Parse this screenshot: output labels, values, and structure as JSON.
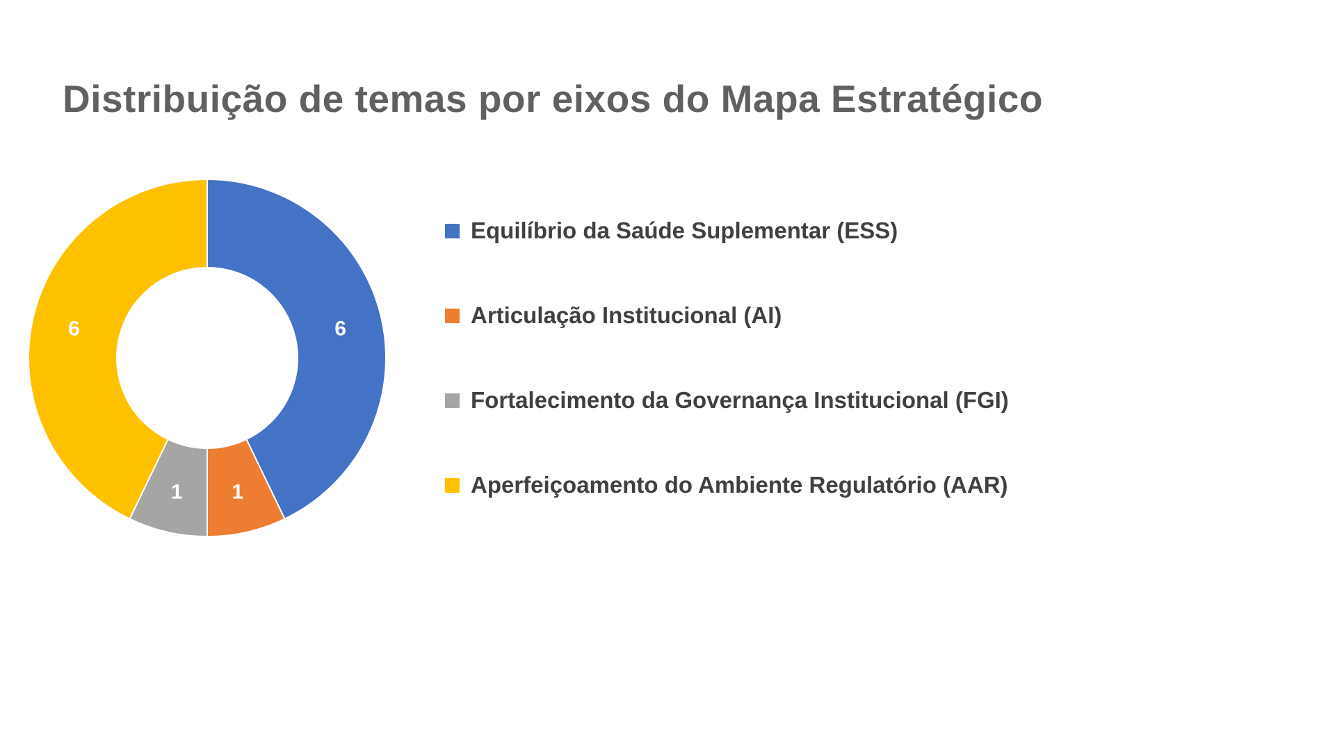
{
  "page": {
    "background": "#ffffff"
  },
  "chart_data": {
    "type": "pie",
    "subtype": "donut",
    "title": "Distribuição de temas por eixos do Mapa Estratégico",
    "title_color": "#606060",
    "legend_position": "right",
    "start_angle_deg": 0,
    "direction": "clockwise",
    "total": 14,
    "label_color": "#ffffff",
    "series": [
      {
        "name": "Equilíbrio da Saúde Suplementar (ESS)",
        "value": 6,
        "label": "6",
        "color": "#4472C4"
      },
      {
        "name": "Articulação Institucional (AI)",
        "value": 1,
        "label": "1",
        "color": "#ED7D31"
      },
      {
        "name": "Fortalecimento da Governança Institucional (FGI)",
        "value": 1,
        "label": "1",
        "color": "#A5A5A5"
      },
      {
        "name": "Aperfeiçoamento do Ambiente Regulatório (AAR)",
        "value": 6,
        "label": "6",
        "color": "#FFC000"
      }
    ]
  }
}
